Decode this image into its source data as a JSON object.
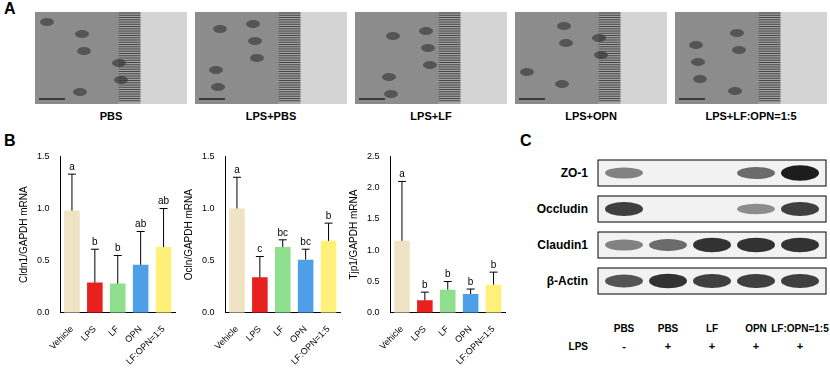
{
  "panel_labels": [
    "A",
    "B",
    "C"
  ],
  "micrographs": {
    "labels": [
      "PBS",
      "LPS+PBS",
      "LPS+LF",
      "LPS+OPN",
      "LPS+LF:OPN=1:5"
    ]
  },
  "chart_data": [
    {
      "type": "bar",
      "y_label": "Cldn1/GAPDH mRNA",
      "categories": [
        "Vehicle",
        "LPS",
        "LF",
        "OPN",
        "LF:OPN=1:5"
      ],
      "values": [
        0.98,
        0.29,
        0.28,
        0.46,
        0.63
      ],
      "errors": [
        0.35,
        0.32,
        0.27,
        0.32,
        0.37
      ],
      "letters": [
        "a",
        "b",
        "b",
        "ab",
        "ab"
      ],
      "colors": [
        "#efe3c4",
        "#e8211f",
        "#8ee08e",
        "#4f9fe8",
        "#fff07a"
      ],
      "ylim": [
        0,
        1.5
      ],
      "yticks": [
        {
          "value": 0,
          "label": "0.0"
        },
        {
          "value": 0.5,
          "label": "0.5"
        },
        {
          "value": 1,
          "label": "1.0"
        },
        {
          "value": 1.5,
          "label": "1.5"
        }
      ],
      "grid": false
    },
    {
      "type": "bar",
      "y_label": "Ocln/GAPDH mRNA",
      "categories": [
        "Vehicle",
        "LPS",
        "LF",
        "OPN",
        "LF:OPN=1:5"
      ],
      "values": [
        1.0,
        0.34,
        0.63,
        0.51,
        0.69
      ],
      "errors": [
        0.3,
        0.2,
        0.07,
        0.1,
        0.17
      ],
      "letters": [
        "a",
        "c",
        "bc",
        "bc",
        "b"
      ],
      "colors": [
        "#efe3c4",
        "#e8211f",
        "#8ee08e",
        "#4f9fe8",
        "#fff07a"
      ],
      "ylim": [
        0,
        1.5
      ],
      "yticks": [
        {
          "value": 0,
          "label": "0.0"
        },
        {
          "value": 0.5,
          "label": "0.5"
        },
        {
          "value": 1,
          "label": "1.0"
        },
        {
          "value": 1.5,
          "label": "1.5"
        }
      ],
      "grid": false
    },
    {
      "type": "bar",
      "y_label": "Tjp1/GAPDH mRNA",
      "categories": [
        "Vehicle",
        "LPS",
        "LF",
        "OPN",
        "LF:OPN=1:5"
      ],
      "values": [
        1.15,
        0.2,
        0.37,
        0.3,
        0.45
      ],
      "errors": [
        0.95,
        0.13,
        0.13,
        0.08,
        0.2
      ],
      "letters": [
        "a",
        "b",
        "b",
        "b",
        "b"
      ],
      "colors": [
        "#efe3c4",
        "#e8211f",
        "#8ee08e",
        "#4f9fe8",
        "#fff07a"
      ],
      "ylim": [
        0,
        2.5
      ],
      "yticks": [
        {
          "value": 0,
          "label": "0.0"
        },
        {
          "value": 0.5,
          "label": "0.5"
        },
        {
          "value": 1,
          "label": "1.0"
        },
        {
          "value": 1.5,
          "label": "1.5"
        },
        {
          "value": 2,
          "label": "2.0"
        },
        {
          "value": 2.5,
          "label": "2.5"
        }
      ],
      "grid": false
    }
  ],
  "blot": {
    "rows": [
      {
        "name": "ZO-1",
        "band_intensity": [
          0.5,
          0.0,
          0.0,
          0.6,
          0.95
        ]
      },
      {
        "name": "Occludin",
        "band_intensity": [
          0.8,
          0.0,
          0.0,
          0.45,
          0.8
        ]
      },
      {
        "name": "Claudin1",
        "band_intensity": [
          0.5,
          0.6,
          0.85,
          0.85,
          0.85
        ]
      },
      {
        "name": "β-Actin",
        "band_intensity": [
          0.7,
          0.85,
          0.8,
          0.8,
          0.8
        ]
      }
    ],
    "lanes": [
      "PBS",
      "PBS",
      "LF",
      "OPN",
      "LF:OPN=1:5"
    ],
    "treatment_label": "LPS",
    "treatment": [
      "-",
      "+",
      "+",
      "+",
      "+"
    ]
  }
}
